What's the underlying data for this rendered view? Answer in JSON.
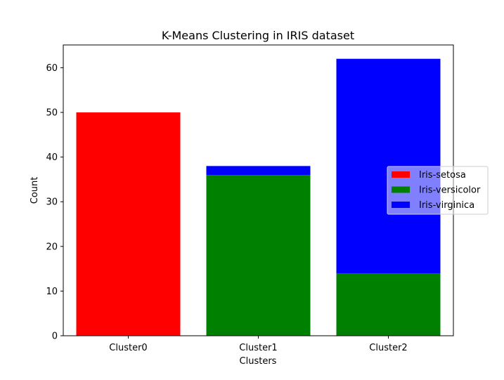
{
  "chart_data": {
    "type": "bar",
    "stacked": true,
    "title": "K-Means Clustering in IRIS dataset",
    "xlabel": "Clusters",
    "ylabel": "Count",
    "categories": [
      "Cluster0",
      "Cluster1",
      "Cluster2"
    ],
    "series": [
      {
        "name": "Iris-setosa",
        "values": [
          50,
          0,
          0
        ],
        "color": "#ff0000"
      },
      {
        "name": "Iris-versicolor",
        "values": [
          0,
          36,
          14
        ],
        "color": "#008000"
      },
      {
        "name": "Iris-virginica",
        "values": [
          0,
          2,
          48
        ],
        "color": "#0000ff"
      }
    ],
    "ylim": [
      0,
      65.1
    ],
    "yticks": [
      0,
      10,
      20,
      30,
      40,
      50,
      60
    ],
    "grid": false,
    "legend": "center-right"
  }
}
